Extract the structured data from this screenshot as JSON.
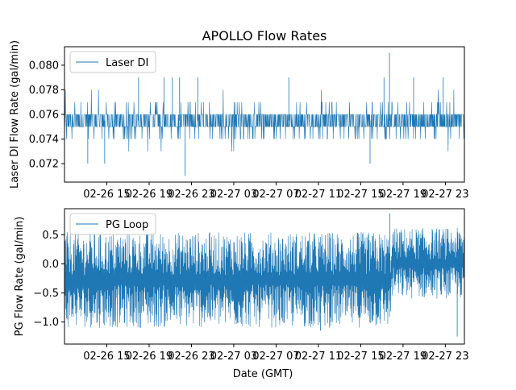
{
  "figure_title": "APOLLO Flow Rates",
  "colors": {
    "series": "#1f77b4",
    "axes": "#000000",
    "background": "#ffffff",
    "legend_border": "#cccccc"
  },
  "chart_data": [
    {
      "type": "line",
      "panel": "top",
      "title": "APOLLO Flow Rates",
      "xlabel": "",
      "ylabel": "Laser DI Flow Rate (gal/min)",
      "x_ticks": [
        "02-26 15",
        "02-26 19",
        "02-26 23",
        "02-27 03",
        "02-27 07",
        "02-27 11",
        "02-27 15",
        "02-27 19",
        "02-27 23"
      ],
      "y_ticks": [
        "0.072",
        "0.074",
        "0.076",
        "0.078",
        "0.080"
      ],
      "xlim": [
        0,
        9.45
      ],
      "ylim": [
        0.0705,
        0.0815
      ],
      "legend": {
        "label": "Laser DI",
        "loc": "upper left"
      },
      "series": [
        {
          "name": "Laser DI",
          "quantization": 0.001,
          "baseline_band": [
            0.075,
            0.076
          ],
          "typical_range": [
            0.073,
            0.078
          ],
          "spikes": [
            {
              "x": 0.55,
              "y": 0.072
            },
            {
              "x": 0.95,
              "y": 0.072
            },
            {
              "x": 1.75,
              "y": 0.079
            },
            {
              "x": 2.35,
              "y": 0.079
            },
            {
              "x": 2.55,
              "y": 0.079
            },
            {
              "x": 2.72,
              "y": 0.079
            },
            {
              "x": 2.85,
              "y": 0.071
            },
            {
              "x": 3.15,
              "y": 0.079
            },
            {
              "x": 5.3,
              "y": 0.079
            },
            {
              "x": 7.22,
              "y": 0.072
            },
            {
              "x": 7.68,
              "y": 0.081
            },
            {
              "x": 7.55,
              "y": 0.079
            },
            {
              "x": 8.25,
              "y": 0.079
            },
            {
              "x": 8.95,
              "y": 0.079
            }
          ]
        }
      ]
    },
    {
      "type": "line",
      "panel": "bottom",
      "title": "",
      "xlabel": "Date (GMT)",
      "ylabel": "PG Flow Rate (gal/min)",
      "x_ticks": [
        "02-26 15",
        "02-26 19",
        "02-26 23",
        "02-27 03",
        "02-27 07",
        "02-27 11",
        "02-27 15",
        "02-27 19",
        "02-27 23"
      ],
      "y_ticks": [
        "−1.0",
        "−0.5",
        "0.0",
        "0.5"
      ],
      "xlim": [
        0,
        9.45
      ],
      "ylim": [
        -1.38,
        0.95
      ],
      "legend": {
        "label": "PG Loop",
        "loc": "upper left"
      },
      "series": [
        {
          "name": "PG Loop",
          "typical_range": [
            -1.1,
            0.55
          ],
          "segments": [
            {
              "x_range": [
                0,
                7.72
              ],
              "upper": 0.55,
              "lower": -1.1
            },
            {
              "x_range": [
                7.72,
                9.45
              ],
              "upper": 0.62,
              "lower": -0.6
            }
          ],
          "spikes": [
            {
              "x": 7.69,
              "y": 0.87
            },
            {
              "x": 9.28,
              "y": -1.25
            },
            {
              "x": 6.05,
              "y": -1.15
            }
          ]
        }
      ]
    }
  ]
}
